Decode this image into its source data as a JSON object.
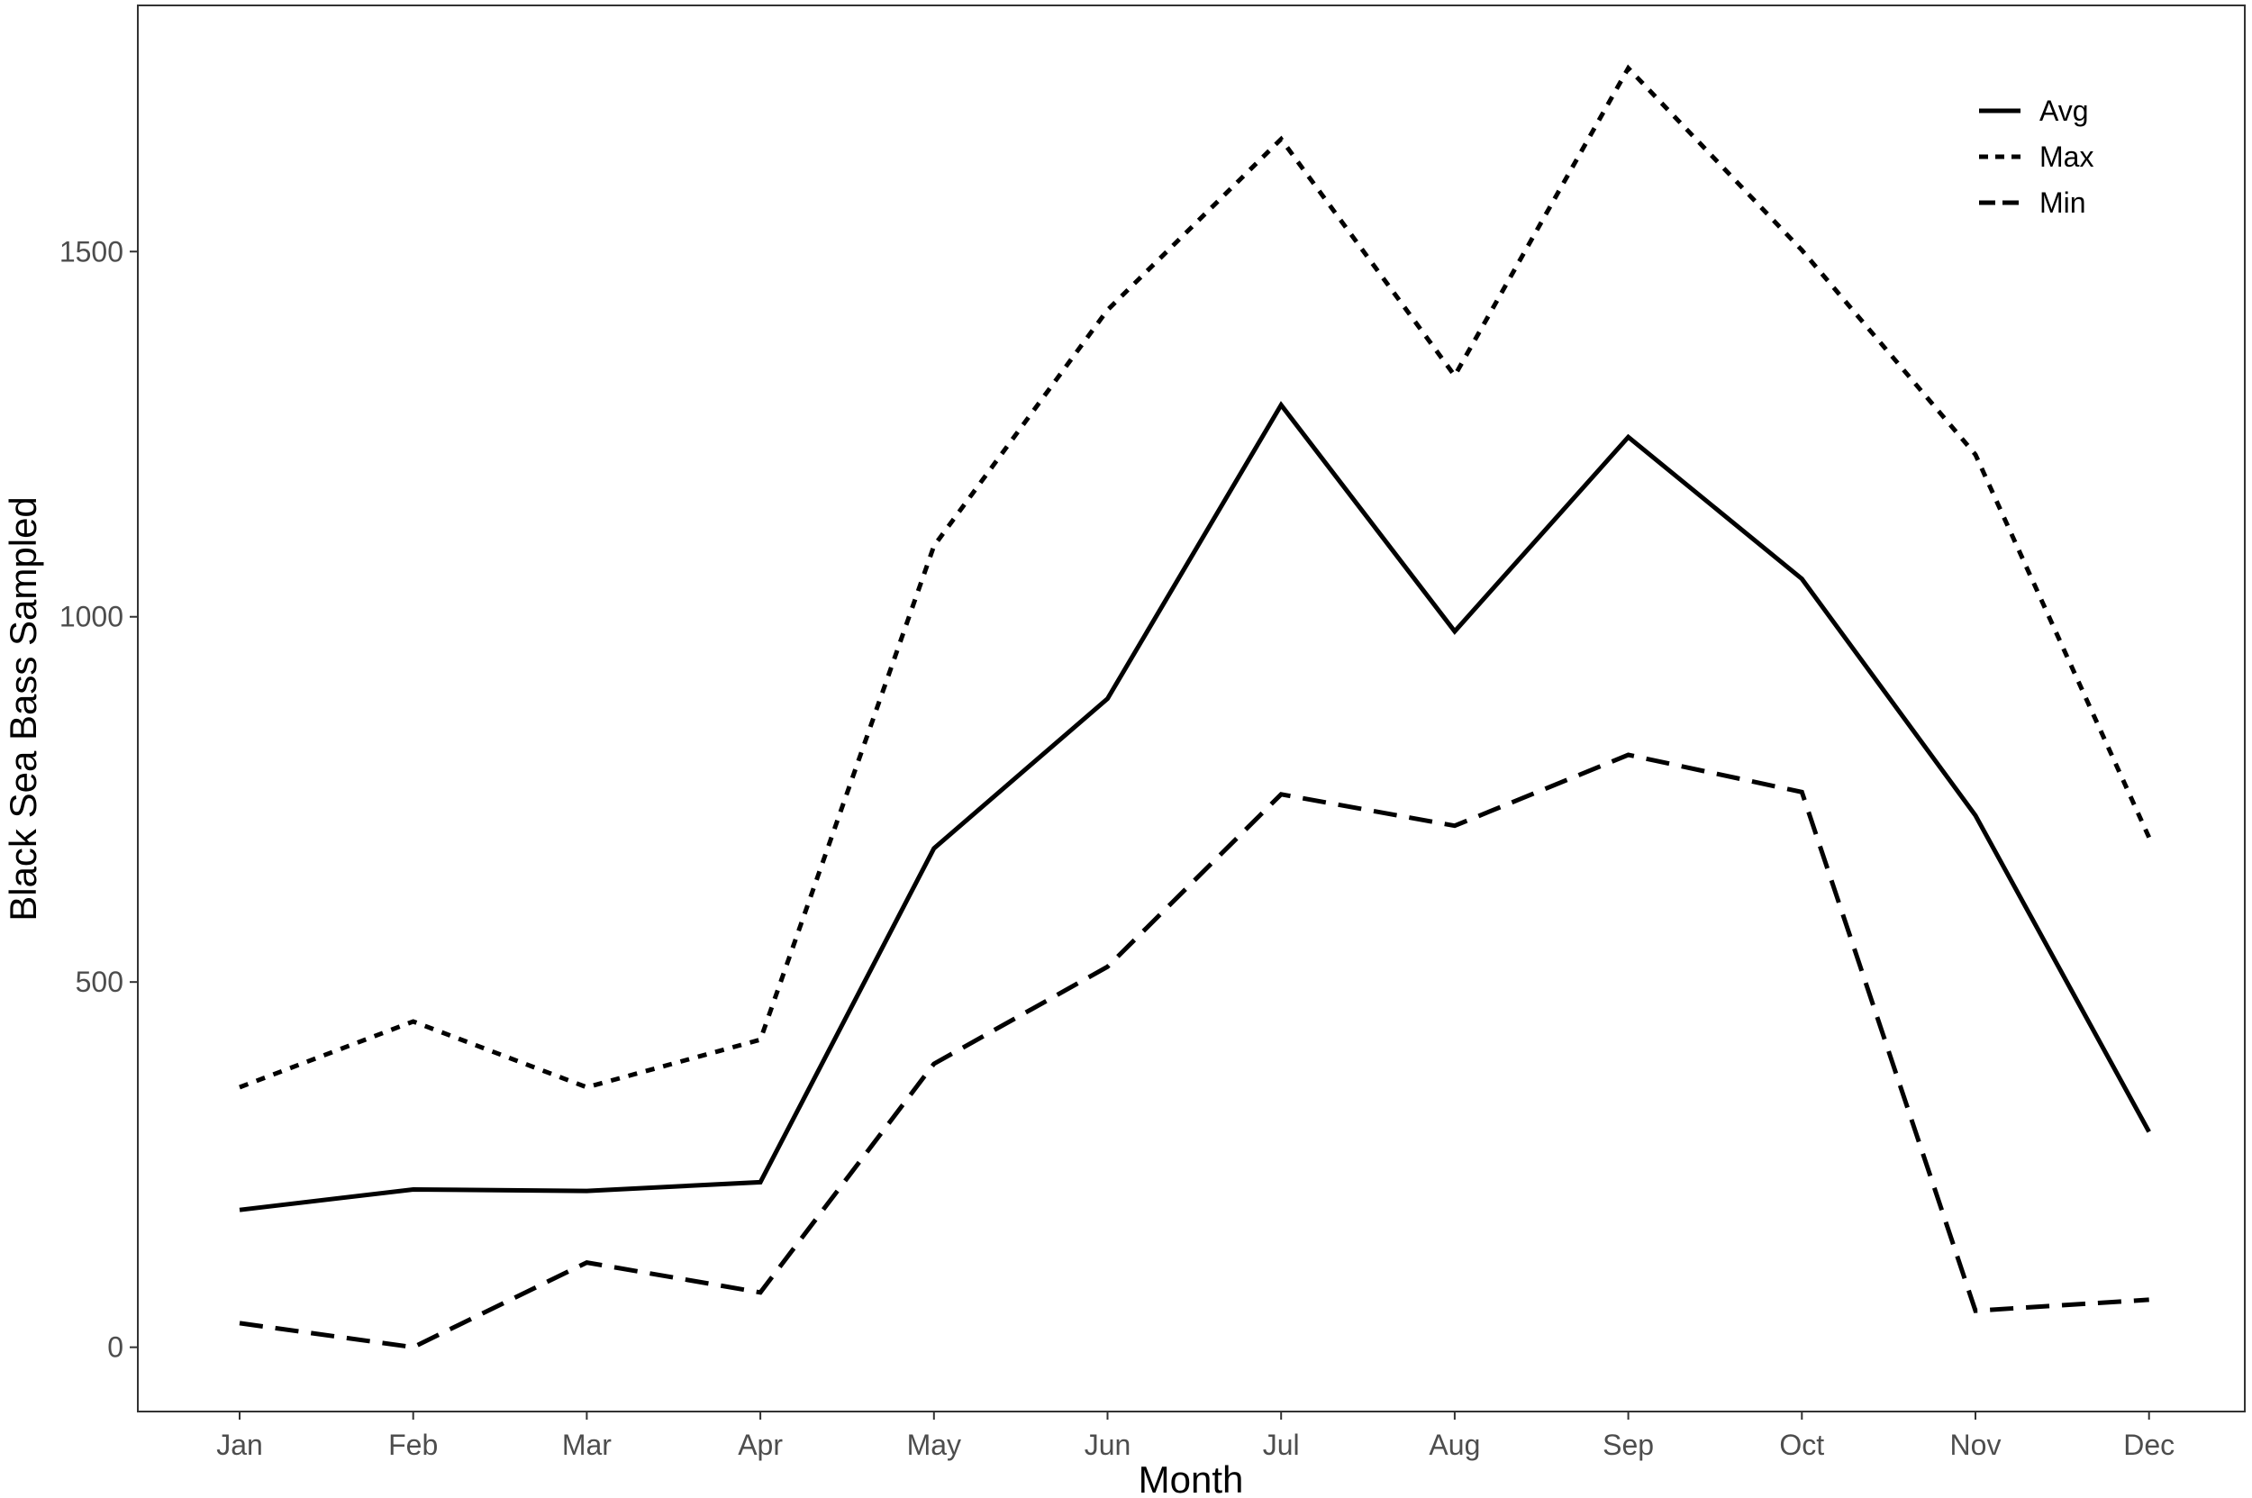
{
  "chart_data": {
    "type": "line",
    "title": "",
    "xlabel": "Month",
    "ylabel": "Black Sea Bass Sampled",
    "categories": [
      "Jan",
      "Feb",
      "Mar",
      "Apr",
      "May",
      "Jun",
      "Jul",
      "Aug",
      "Sep",
      "Oct",
      "Nov",
      "Dec"
    ],
    "ylim": [
      -88,
      1837
    ],
    "yticks": [
      0,
      500,
      1000,
      1500
    ],
    "grid": false,
    "legend_position": "top-right",
    "series": [
      {
        "name": "Avg",
        "line_style": "solid",
        "color": "#000000",
        "values": [
          188,
          216,
          214,
          226,
          683,
          888,
          1290,
          980,
          1246,
          1052,
          728,
          295
        ]
      },
      {
        "name": "Max",
        "line_style": "dotted",
        "color": "#000000",
        "values": [
          356,
          446,
          356,
          421,
          1097,
          1420,
          1654,
          1330,
          1751,
          1502,
          1222,
          698
        ]
      },
      {
        "name": "Min",
        "line_style": "dashed",
        "color": "#000000",
        "values": [
          33,
          0,
          116,
          75,
          388,
          521,
          757,
          714,
          811,
          760,
          50,
          65
        ]
      }
    ]
  }
}
